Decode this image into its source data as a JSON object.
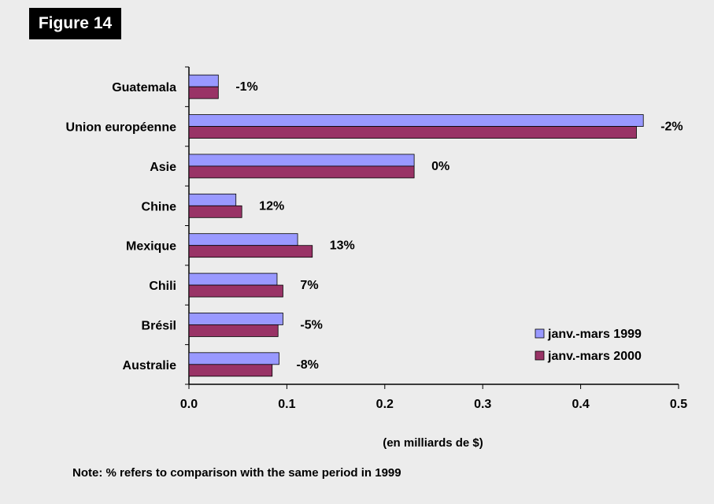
{
  "figure_label": "Figure 14",
  "note": "Note: % refers to comparison with the same period in 1999",
  "chart_data": {
    "type": "bar",
    "orientation": "horizontal",
    "categories": [
      "Guatemala",
      "Union européenne",
      "Asie",
      "Chine",
      "Mexique",
      "Chili",
      "Brésil",
      "Australie"
    ],
    "series": [
      {
        "name": "janv.-mars 1999",
        "color": "#9999ff",
        "values": [
          0.03,
          0.464,
          0.23,
          0.048,
          0.111,
          0.09,
          0.096,
          0.092
        ]
      },
      {
        "name": "janv.-mars 2000",
        "color": "#993366",
        "values": [
          0.03,
          0.457,
          0.23,
          0.054,
          0.126,
          0.096,
          0.091,
          0.085
        ]
      }
    ],
    "annotations": [
      "-1%",
      "-2%",
      "0%",
      "12%",
      "13%",
      "7%",
      "-5%",
      "-8%"
    ],
    "xlabel": "(en milliards de $)",
    "ylabel": "",
    "xlim": [
      0,
      0.5
    ],
    "xticks": [
      "0.0",
      "0.1",
      "0.2",
      "0.3",
      "0.4",
      "0.5"
    ],
    "grid": false,
    "legend_position": "bottom-right"
  }
}
